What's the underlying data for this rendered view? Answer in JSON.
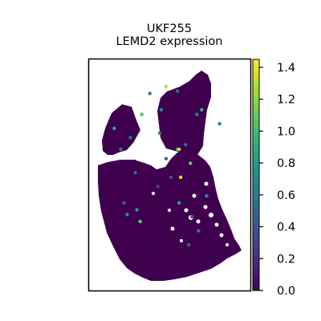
{
  "chart_data": {
    "type": "scatter",
    "title_lines": [
      "UKF255",
      "LEMD2 expression"
    ],
    "xlabel": "",
    "ylabel": "",
    "colorbar": {
      "colormap": "viridis",
      "range": [
        0.0,
        1.45
      ],
      "ticks": [
        0.0,
        0.2,
        0.4,
        0.6,
        0.8,
        1.0,
        1.2,
        1.4
      ],
      "tick_labels": [
        "0.0",
        "0.2",
        "0.4",
        "0.6",
        "0.8",
        "1.0",
        "1.2",
        "1.4"
      ],
      "placement": "right"
    },
    "base_color": "#440154",
    "highlight_points": [
      {
        "x": 0.24,
        "y": 0.67,
        "value": 0.75
      },
      {
        "x": 0.3,
        "y": 0.65,
        "value": 0.8
      },
      {
        "x": 0.32,
        "y": 0.7,
        "value": 1.1
      },
      {
        "x": 0.43,
        "y": 0.55,
        "value": 0.3
      },
      {
        "x": 0.48,
        "y": 0.43,
        "value": 0.55
      },
      {
        "x": 0.51,
        "y": 0.51,
        "value": 0.4
      },
      {
        "x": 0.55,
        "y": 0.39,
        "value": 0.9
      },
      {
        "x": 0.57,
        "y": 0.51,
        "value": 1.4
      },
      {
        "x": 0.56,
        "y": 0.39,
        "value": 1.3
      },
      {
        "x": 0.63,
        "y": 0.45,
        "value": 1.1
      },
      {
        "x": 0.67,
        "y": 0.24,
        "value": 0.65
      },
      {
        "x": 0.48,
        "y": 0.12,
        "value": 1.3
      },
      {
        "x": 0.45,
        "y": 0.22,
        "value": 0.7
      },
      {
        "x": 0.2,
        "y": 0.39,
        "value": 0.6
      },
      {
        "x": 0.33,
        "y": 0.24,
        "value": 1.05
      },
      {
        "x": 0.68,
        "y": 0.74,
        "value": 0.6
      },
      {
        "x": 0.73,
        "y": 0.59,
        "value": 0.75
      },
      {
        "x": 0.6,
        "y": 0.37,
        "value": 0.5
      },
      {
        "x": 0.16,
        "y": 0.3,
        "value": 0.9
      },
      {
        "x": 0.26,
        "y": 0.34,
        "value": 0.55
      },
      {
        "x": 0.64,
        "y": 0.68,
        "value": 0.35
      },
      {
        "x": 0.38,
        "y": 0.15,
        "value": 0.6
      },
      {
        "x": 0.55,
        "y": 0.14,
        "value": 0.55
      },
      {
        "x": 0.7,
        "y": 0.22,
        "value": 0.95
      },
      {
        "x": 0.22,
        "y": 0.62,
        "value": 0.45
      },
      {
        "x": 0.81,
        "y": 0.28,
        "value": 0.65
      },
      {
        "x": 0.29,
        "y": 0.49,
        "value": 0.5
      },
      {
        "x": 0.44,
        "y": 0.32,
        "value": 0.7
      },
      {
        "x": 0.62,
        "y": 0.8,
        "value": 0.5
      },
      {
        "x": 0.56,
        "y": 0.62,
        "value": 0.85
      }
    ]
  }
}
